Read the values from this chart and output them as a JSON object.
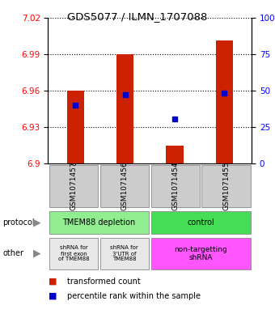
{
  "title": "GDS5077 / ILMN_1707088",
  "samples": [
    "GSM1071457",
    "GSM1071456",
    "GSM1071454",
    "GSM1071455"
  ],
  "red_values": [
    6.96,
    6.99,
    6.915,
    7.001
  ],
  "red_base": 6.9,
  "blue_values": [
    6.948,
    6.957,
    6.937,
    6.958
  ],
  "ylim_left": [
    6.9,
    7.02
  ],
  "yticks_left": [
    6.9,
    6.93,
    6.96,
    6.99,
    7.02
  ],
  "yticks_right": [
    0,
    25,
    50,
    75,
    100
  ],
  "ytick_labels_left": [
    "6.9",
    "6.93",
    "6.96",
    "6.99",
    "7.02"
  ],
  "ytick_labels_right": [
    "0",
    "25",
    "50",
    "75",
    "100%"
  ],
  "protocol_labels": [
    "TMEM88 depletion",
    "control"
  ],
  "protocol_colors": [
    "#90EE90",
    "#44DD55"
  ],
  "other_labels_left1": "shRNA for\nfirst exon\nof TMEM88",
  "other_labels_left2": "shRNA for\n3'UTR of\nTMEM88",
  "other_labels_right": "non-targetting\nshRNA",
  "other_color_left": "#E8E8E8",
  "other_color_right": "#FF55FF",
  "bar_color": "#CC2200",
  "dot_color": "#0000CC",
  "bar_width": 0.35,
  "legend_red": "transformed count",
  "legend_blue": "percentile rank within the sample"
}
